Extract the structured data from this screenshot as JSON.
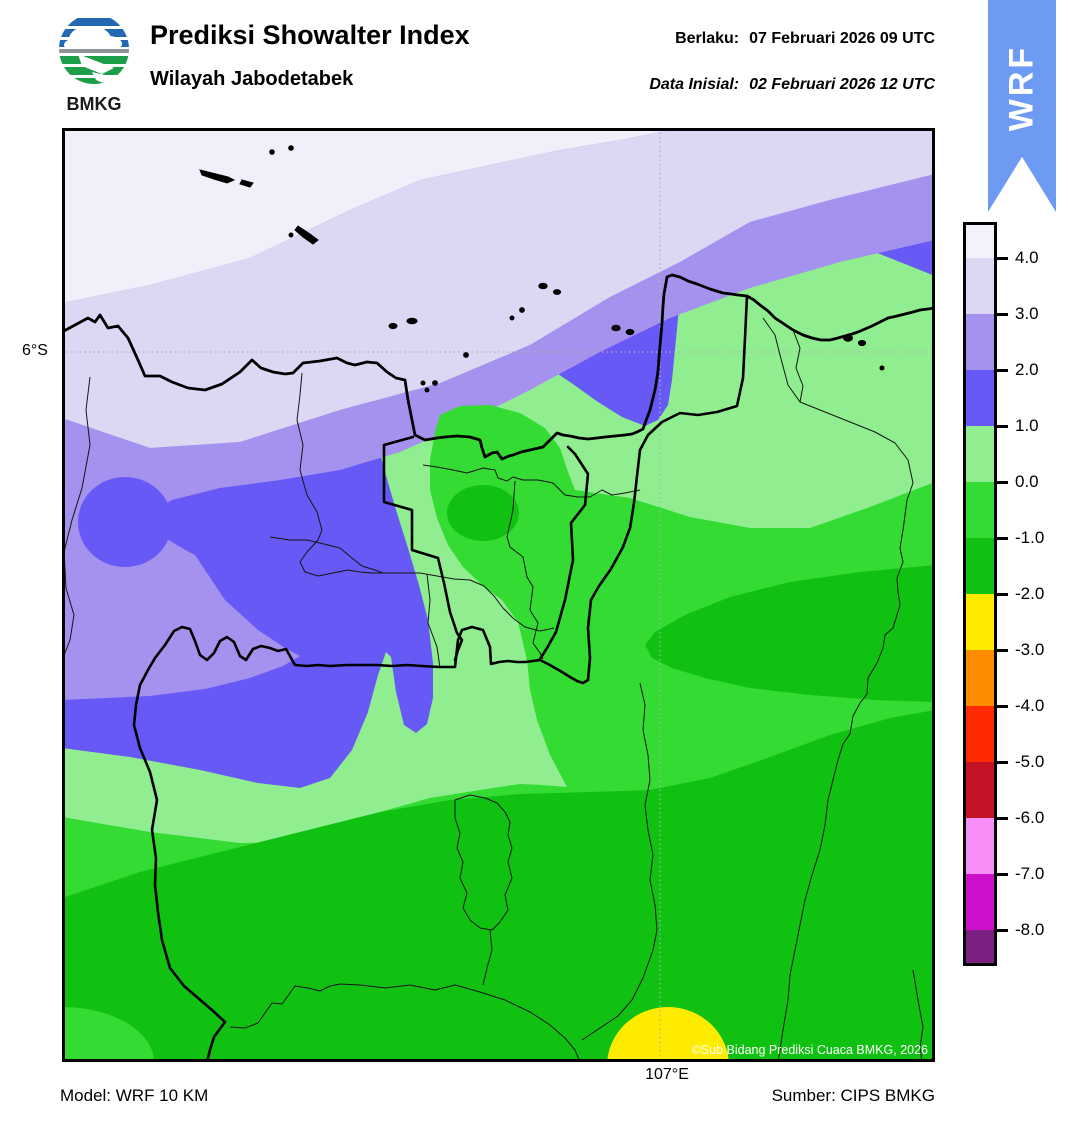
{
  "header": {
    "logo_text": "BMKG",
    "title": "Prediksi Showalter Index",
    "subtitle": "Wilayah Jabodetabek",
    "valid_label": "Berlaku:",
    "valid_value": "07 Februari 2026 09 UTC",
    "init_label": "Data Inisial:",
    "init_value": "02 Februari 2026 12 UTC",
    "ribbon_label": "WRF"
  },
  "map": {
    "lat_label": "6°S",
    "lon_label": "107°E",
    "copyright": "©Sub Bidang Prediksi Cuaca BMKG, 2026"
  },
  "colorbar": {
    "tick_labels": [
      "4.0",
      "3.0",
      "2.0",
      "1.0",
      "0.0",
      "-1.0",
      "-2.0",
      "-3.0",
      "-4.0",
      "-5.0",
      "-6.0",
      "-7.0",
      "-8.0"
    ],
    "segment_colors": [
      "#f3f1fb",
      "#dcd8f4",
      "#a492ee",
      "#6659f5",
      "#90ee90",
      "#33db33",
      "#11c111",
      "#ffeb00",
      "#ff8c00",
      "#ff2a00",
      "#c41226",
      "#f98ef9",
      "#cc11cc",
      "#7c2081"
    ]
  },
  "footer": {
    "model": "Model: WRF 10 KM",
    "source": "Sumber: CIPS BMKG"
  }
}
